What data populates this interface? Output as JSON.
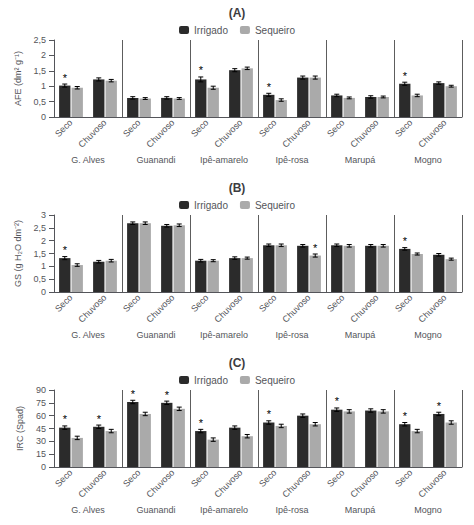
{
  "chart_data": [
    {
      "type": "bar",
      "title": "(A)",
      "y_label": "AFE (dm² g⁻¹)",
      "groups": [
        "G. Alves",
        "Guanandi",
        "Ipê-amarelo",
        "Ipê-rosa",
        "Marupá",
        "Mogno"
      ],
      "categories": [
        "Seco",
        "Chuvoso",
        "Seco",
        "Chuvoso",
        "Seco",
        "Chuvoso",
        "Seco",
        "Chuvoso",
        "Seco",
        "Chuvoso",
        "Seco",
        "Chuvoso"
      ],
      "series": [
        {
          "name": "Irrigado",
          "color": "#2b2b2b",
          "values": [
            1.02,
            1.22,
            0.62,
            0.62,
            1.22,
            1.52,
            0.72,
            1.28,
            0.7,
            0.65,
            1.08,
            1.1
          ],
          "errors": [
            0.05,
            0.05,
            0.04,
            0.04,
            0.08,
            0.05,
            0.05,
            0.05,
            0.04,
            0.04,
            0.05,
            0.04
          ]
        },
        {
          "name": "Sequeiro",
          "color": "#aaaaaa",
          "values": [
            0.95,
            1.18,
            0.6,
            0.6,
            0.95,
            1.58,
            0.55,
            1.28,
            0.62,
            0.65,
            0.7,
            1.0
          ],
          "errors": [
            0.04,
            0.04,
            0.03,
            0.03,
            0.05,
            0.04,
            0.04,
            0.05,
            0.03,
            0.03,
            0.04,
            0.03
          ]
        }
      ],
      "annotations": [
        {
          "text": "*",
          "series": "Irrigado",
          "index": 0
        },
        {
          "text": "*",
          "series": "Irrigado",
          "index": 4
        },
        {
          "text": "*",
          "series": "Irrigado",
          "index": 6
        },
        {
          "text": "*",
          "series": "Irrigado",
          "index": 10
        }
      ],
      "ylim": [
        0,
        2.5
      ],
      "yticks": [
        0,
        {
          "value": 0.5,
          "label": "0,5"
        },
        1,
        {
          "value": 1.5,
          "label": "1,5"
        },
        2,
        {
          "value": 2.5,
          "label": "2,5"
        }
      ],
      "legend": "top",
      "grid": false
    },
    {
      "type": "bar",
      "title": "(B)",
      "y_label": "GS (g H₂O dm⁻²)",
      "groups": [
        "G. Alves",
        "Guanandi",
        "Ipê-amarelo",
        "Ipê-rosa",
        "Marupá",
        "Mogno"
      ],
      "categories": [
        "Seco",
        "Chuvoso",
        "Seco",
        "Chuvoso",
        "Seco",
        "Chuvoso",
        "Seco",
        "Chuvoso",
        "Seco",
        "Chuvoso",
        "Seco",
        "Chuvoso"
      ],
      "series": [
        {
          "name": "Irrigado",
          "color": "#2b2b2b",
          "values": [
            1.32,
            1.18,
            2.68,
            2.58,
            1.22,
            1.32,
            1.82,
            1.8,
            1.82,
            1.8,
            1.68,
            1.45
          ],
          "errors": [
            0.06,
            0.05,
            0.05,
            0.05,
            0.05,
            0.05,
            0.05,
            0.05,
            0.05,
            0.05,
            0.05,
            0.05
          ]
        },
        {
          "name": "Sequeiro",
          "color": "#aaaaaa",
          "values": [
            1.05,
            1.22,
            2.68,
            2.6,
            1.22,
            1.32,
            1.82,
            1.42,
            1.8,
            1.8,
            1.48,
            1.28
          ],
          "errors": [
            0.05,
            0.05,
            0.05,
            0.05,
            0.04,
            0.04,
            0.05,
            0.06,
            0.05,
            0.05,
            0.04,
            0.04
          ]
        }
      ],
      "annotations": [
        {
          "text": "*",
          "series": "Irrigado",
          "index": 0
        },
        {
          "text": "*",
          "series": "Irrigado",
          "index": 10
        },
        {
          "text": "*",
          "series": "Sequeiro",
          "index": 7
        }
      ],
      "ylim": [
        0,
        3.0
      ],
      "yticks": [
        0,
        {
          "value": 0.5,
          "label": "0,5"
        },
        1,
        {
          "value": 1.5,
          "label": "1,5"
        },
        2,
        {
          "value": 2.5,
          "label": "2,5"
        },
        3
      ],
      "legend": "top",
      "grid": false
    },
    {
      "type": "bar",
      "title": "(C)",
      "y_label": "IRC (Spad)",
      "groups": [
        "G. Alves",
        "Guanandi",
        "Ipê-amarelo",
        "Ipê-rosa",
        "Marupá",
        "Mogno"
      ],
      "categories": [
        "Seco",
        "Chuvoso",
        "Seco",
        "Chuvoso",
        "Seco",
        "Chuvoso",
        "Seco",
        "Chuvoso",
        "Seco",
        "Chuvoso",
        "Seco",
        "Chuvoso"
      ],
      "series": [
        {
          "name": "Irrigado",
          "color": "#2b2b2b",
          "values": [
            46,
            47,
            76,
            75,
            42,
            46,
            52,
            60,
            67,
            66,
            50,
            62
          ],
          "errors": [
            2,
            2,
            2,
            2,
            2,
            2,
            2,
            2,
            2,
            2,
            2,
            2
          ]
        },
        {
          "name": "Sequeiro",
          "color": "#aaaaaa",
          "values": [
            34,
            42,
            62,
            68,
            32,
            36,
            48,
            50,
            65,
            65,
            42,
            52
          ],
          "errors": [
            2,
            2,
            2,
            2,
            2,
            2,
            2,
            2,
            2,
            2,
            2,
            2
          ]
        }
      ],
      "annotations": [
        {
          "text": "*",
          "series": "Irrigado",
          "index": 0
        },
        {
          "text": "*",
          "series": "Irrigado",
          "index": 1
        },
        {
          "text": "*",
          "series": "Irrigado",
          "index": 2
        },
        {
          "text": "*",
          "series": "Irrigado",
          "index": 3
        },
        {
          "text": "*",
          "series": "Irrigado",
          "index": 4
        },
        {
          "text": "*",
          "series": "Irrigado",
          "index": 6
        },
        {
          "text": "*",
          "series": "Irrigado",
          "index": 8
        },
        {
          "text": "*",
          "series": "Irrigado",
          "index": 10
        },
        {
          "text": "*",
          "series": "Irrigado",
          "index": 11
        }
      ],
      "ylim": [
        0,
        90
      ],
      "yticks": [
        0,
        15,
        30,
        45,
        60,
        75,
        90
      ],
      "legend": "top",
      "grid": false
    }
  ]
}
